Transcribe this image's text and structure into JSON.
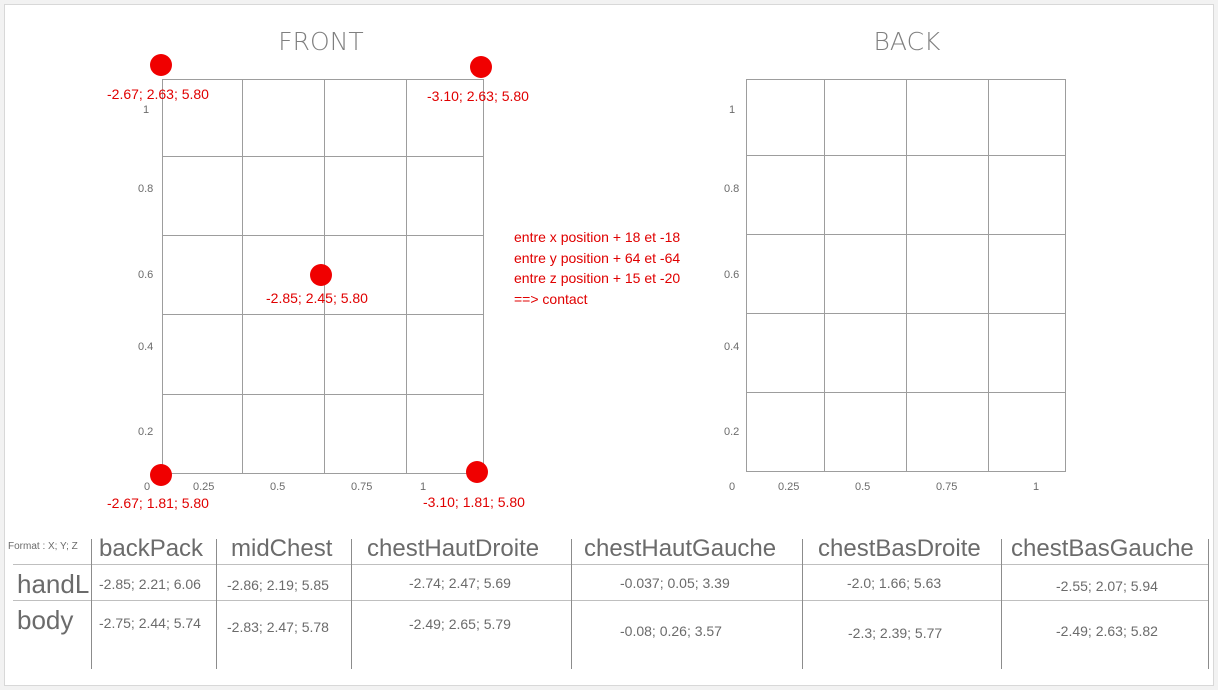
{
  "front": {
    "title": "FRONT",
    "y_ticks": [
      "1",
      "0.8",
      "0.6",
      "0.4",
      "0.2"
    ],
    "x_ticks": [
      "0",
      "0.25",
      "0.5",
      "0.75",
      "1"
    ],
    "points": [
      {
        "label": "-2.67; 2.63; 5.80"
      },
      {
        "label": "-3.10; 2.63; 5.80"
      },
      {
        "label": "-2.85; 2.45; 5.80"
      },
      {
        "label": "-2.67; 1.81; 5.80"
      },
      {
        "label": "-3.10; 1.81; 5.80"
      }
    ]
  },
  "back": {
    "title": "BACK",
    "y_ticks": [
      "1",
      "0.8",
      "0.6",
      "0.4",
      "0.2"
    ],
    "x_ticks": [
      "0",
      "0.25",
      "0.5",
      "0.75",
      "1"
    ]
  },
  "note": {
    "lines": [
      "entre x position + 18 et -18",
      "entre y position + 64 et -64",
      "entre z position + 15 et -20",
      "==> contact"
    ]
  },
  "table": {
    "format_label": "Format : X; Y; Z",
    "columns": [
      "backPack",
      "midChest",
      "chestHautDroite",
      "chestHautGauche",
      "chestBasDroite",
      "chestBasGauche"
    ],
    "rows": [
      {
        "name": "handL",
        "cells": [
          "-2.85; 2.21; 6.06",
          "-2.86; 2.19; 5.85",
          "-2.74; 2.47; 5.69",
          "-0.037; 0.05; 3.39",
          "-2.0; 1.66; 5.63",
          "-2.55; 2.07; 5.94"
        ]
      },
      {
        "name": "body",
        "cells": [
          "-2.75; 2.44; 5.74",
          "-2.83; 2.47; 5.78",
          "-2.49; 2.65; 5.79",
          "-0.08; 0.26; 3.57",
          "-2.3; 2.39; 5.77",
          "-2.49; 2.63; 5.82"
        ]
      }
    ]
  },
  "colors": {
    "accent": "#f00000",
    "label": "#e00000",
    "grid": "#9d9d9d",
    "text": "#6b6b6b"
  }
}
